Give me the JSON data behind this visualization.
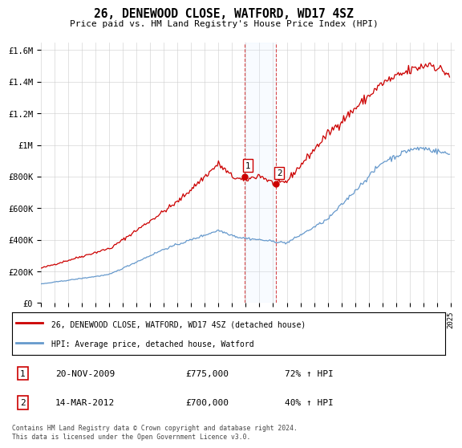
{
  "title": "26, DENEWOOD CLOSE, WATFORD, WD17 4SZ",
  "subtitle": "Price paid vs. HM Land Registry's House Price Index (HPI)",
  "ylabel_ticks": [
    "£0",
    "£200K",
    "£400K",
    "£600K",
    "£800K",
    "£1M",
    "£1.2M",
    "£1.4M",
    "£1.6M"
  ],
  "ytick_values": [
    0,
    200000,
    400000,
    600000,
    800000,
    1000000,
    1200000,
    1400000,
    1600000
  ],
  "ylim": [
    0,
    1650000
  ],
  "year_start": 1995,
  "year_end": 2025,
  "sale1_date": 2009.9,
  "sale1_price": 775000,
  "sale1_label": "1",
  "sale1_text": "20-NOV-2009",
  "sale1_amount": "£775,000",
  "sale1_pct": "72% ↑ HPI",
  "sale2_date": 2012.2,
  "sale2_price": 700000,
  "sale2_label": "2",
  "sale2_text": "14-MAR-2012",
  "sale2_amount": "£700,000",
  "sale2_pct": "40% ↑ HPI",
  "line_red": "#cc0000",
  "line_blue": "#6699cc",
  "shade_color": "#ddeeff",
  "vline_color": "#cc0000",
  "legend_label_red": "26, DENEWOOD CLOSE, WATFORD, WD17 4SZ (detached house)",
  "legend_label_blue": "HPI: Average price, detached house, Watford",
  "footer": "Contains HM Land Registry data © Crown copyright and database right 2024.\nThis data is licensed under the Open Government Licence v3.0.",
  "background_color": "#ffffff",
  "grid_color": "#cccccc"
}
